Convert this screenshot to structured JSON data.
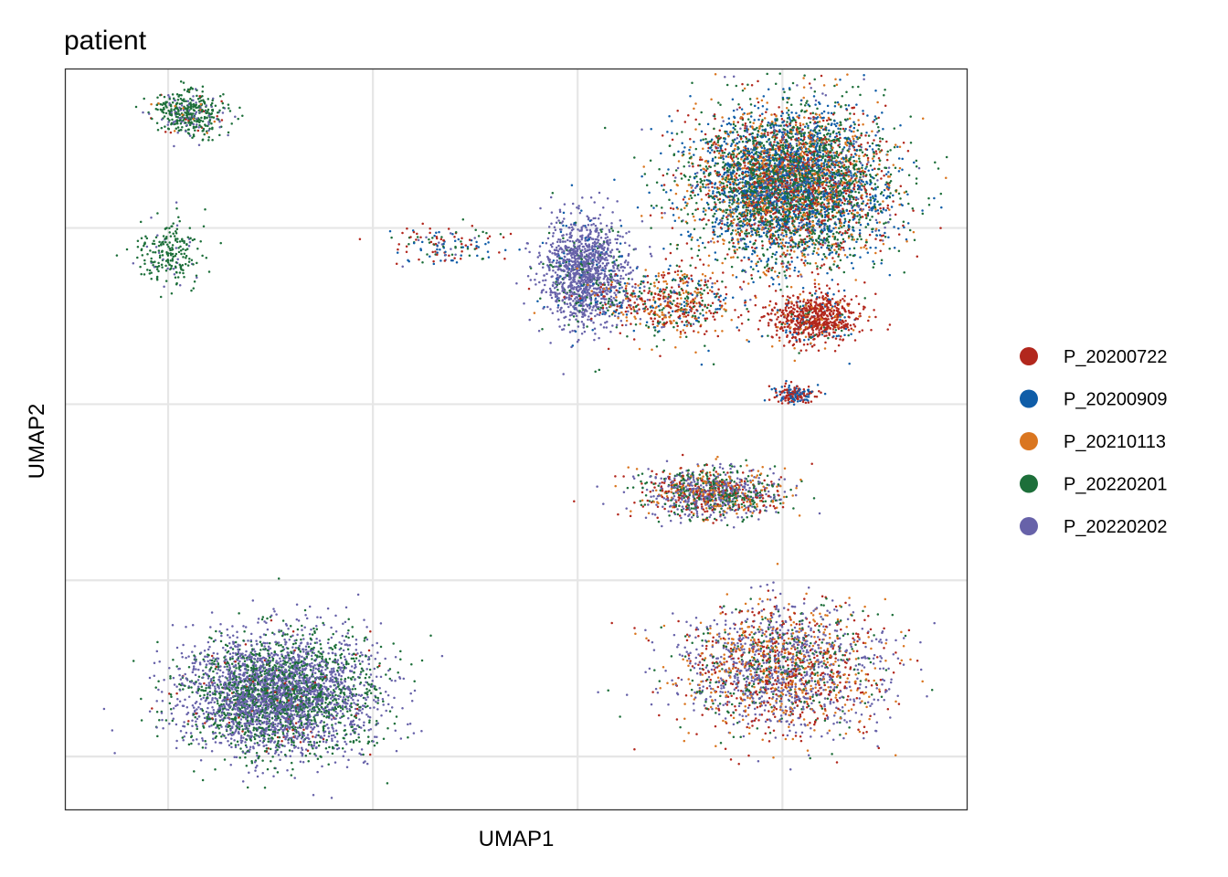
{
  "chart_data": {
    "type": "scatter",
    "title": "patient",
    "xlabel": "UMAP1",
    "ylabel": "UMAP2",
    "xlim": [
      -7.5,
      14.5
    ],
    "ylim": [
      -9.2,
      7.6
    ],
    "grid": true,
    "x_gridlines": [
      -5,
      0,
      5,
      10
    ],
    "y_gridlines": [
      -8,
      -4,
      0,
      4
    ],
    "tick_labels_shown": false,
    "legend": {
      "position": "right",
      "entries": [
        "P_20200722",
        "P_20200909",
        "P_20210113",
        "P_20220201",
        "P_20220202"
      ]
    },
    "series": [
      {
        "name": "P_20200722",
        "color": "#B2271D"
      },
      {
        "name": "P_20200909",
        "color": "#0F5DA8"
      },
      {
        "name": "P_20210113",
        "color": "#DA7620"
      },
      {
        "name": "P_20220201",
        "color": "#1D6F3A"
      },
      {
        "name": "P_20220202",
        "color": "#6762A9"
      }
    ],
    "clusters": [
      {
        "label": "top-left upper island",
        "center": [
          -4.45,
          6.6
        ],
        "spread": [
          0.85,
          0.55
        ],
        "n": 420,
        "mix": {
          "P_20220201": 0.72,
          "P_20220202": 0.22,
          "P_20200722": 0.03,
          "P_20210113": 0.03
        }
      },
      {
        "label": "top-left lower island",
        "center": [
          -4.95,
          3.45
        ],
        "spread": [
          0.8,
          0.75
        ],
        "n": 220,
        "mix": {
          "P_20220201": 0.88,
          "P_20220202": 0.12
        }
      },
      {
        "label": "top-right large cluster",
        "center": [
          10.2,
          5.0
        ],
        "spread": [
          2.35,
          1.75
        ],
        "n": 5200,
        "mix": {
          "P_20220201": 0.33,
          "P_20200909": 0.29,
          "P_20210113": 0.15,
          "P_20200722": 0.17,
          "P_20220202": 0.06
        }
      },
      {
        "label": "top-right lower appendix",
        "center": [
          10.8,
          1.95
        ],
        "spread": [
          1.05,
          0.55
        ],
        "n": 750,
        "mix": {
          "P_20200722": 0.75,
          "P_20200909": 0.1,
          "P_20210113": 0.1,
          "P_20220201": 0.05
        }
      },
      {
        "label": "top-right bottom tail",
        "center": [
          10.3,
          0.22
        ],
        "spread": [
          0.55,
          0.2
        ],
        "n": 180,
        "mix": {
          "P_20200722": 0.55,
          "P_20200909": 0.4,
          "P_20220202": 0.05
        }
      },
      {
        "label": "purple stem",
        "center": [
          5.2,
          3.0
        ],
        "spread": [
          1.0,
          1.25
        ],
        "n": 1300,
        "mix": {
          "P_20220202": 0.85,
          "P_20220201": 0.1,
          "P_20200909": 0.05
        }
      },
      {
        "label": "scattered bridge",
        "center": [
          7.2,
          2.3
        ],
        "spread": [
          1.8,
          0.8
        ],
        "n": 600,
        "mix": {
          "P_20200722": 0.35,
          "P_20210113": 0.2,
          "P_20220201": 0.25,
          "P_20200909": 0.15,
          "P_20220202": 0.05
        }
      },
      {
        "label": "left arm",
        "center": [
          1.8,
          3.6
        ],
        "spread": [
          1.4,
          0.45
        ],
        "n": 140,
        "mix": {
          "P_20200909": 0.35,
          "P_20200722": 0.3,
          "P_20220201": 0.25,
          "P_20220202": 0.1
        }
      },
      {
        "label": "bottom-left cluster",
        "center": [
          -2.3,
          -6.6
        ],
        "spread": [
          2.3,
          1.35
        ],
        "n": 3800,
        "mix": {
          "P_20220202": 0.6,
          "P_20220201": 0.38,
          "P_20200722": 0.02
        }
      },
      {
        "label": "middle-right arc",
        "center": [
          8.3,
          -2.0
        ],
        "spread": [
          1.7,
          0.55
        ],
        "n": 1100,
        "mix": {
          "P_20220202": 0.38,
          "P_20220201": 0.27,
          "P_20200722": 0.2,
          "P_20210113": 0.15
        }
      },
      {
        "label": "bottom-right cluster",
        "center": [
          10.0,
          -6.0
        ],
        "spread": [
          2.5,
          1.45
        ],
        "n": 2000,
        "mix": {
          "P_20220202": 0.42,
          "P_20200722": 0.22,
          "P_20210113": 0.2,
          "P_20220201": 0.16
        }
      }
    ]
  }
}
